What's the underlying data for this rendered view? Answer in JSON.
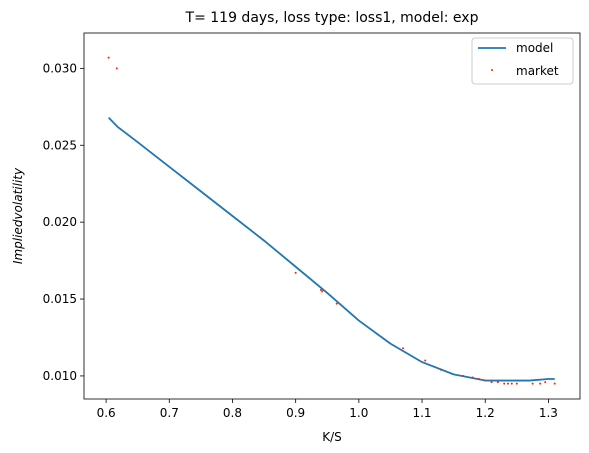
{
  "chart_data": {
    "type": "line",
    "title": "T= 119 days, loss type: loss1, model: exp",
    "xlabel": "K/S",
    "ylabel": "Impliedvolatility",
    "xlim": [
      0.565,
      1.35
    ],
    "ylim": [
      0.0085,
      0.0323
    ],
    "xticks": [
      0.6,
      0.7,
      0.8,
      0.9,
      1.0,
      1.1,
      1.2,
      1.3
    ],
    "xtick_labels": [
      "0.6",
      "0.7",
      "0.8",
      "0.9",
      "1.0",
      "1.1",
      "1.2",
      "1.3"
    ],
    "yticks": [
      0.01,
      0.015,
      0.02,
      0.025,
      0.03
    ],
    "ytick_labels": [
      "0.010",
      "0.015",
      "0.020",
      "0.025",
      "0.030"
    ],
    "grid": false,
    "legend_position": "top-right",
    "series": [
      {
        "name": "model",
        "kind": "line",
        "color": "#1f77b4",
        "x": [
          0.604,
          0.618,
          0.65,
          0.7,
          0.75,
          0.8,
          0.85,
          0.9,
          0.95,
          1.0,
          1.05,
          1.1,
          1.15,
          1.2,
          1.24,
          1.27,
          1.3,
          1.31
        ],
        "y": [
          0.0268,
          0.0262,
          0.0252,
          0.0236,
          0.022,
          0.0204,
          0.0188,
          0.0171,
          0.0154,
          0.0136,
          0.0121,
          0.0109,
          0.0101,
          0.0097,
          0.0097,
          0.0097,
          0.0098,
          0.0098
        ]
      },
      {
        "name": "market",
        "kind": "scatter",
        "color": "#ff2200",
        "x": [
          0.604,
          0.617,
          0.9,
          0.94,
          0.942,
          0.965,
          1.07,
          1.105,
          1.13,
          1.165,
          1.18,
          1.19,
          1.2,
          1.21,
          1.22,
          1.23,
          1.236,
          1.242,
          1.25,
          1.275,
          1.287,
          1.295,
          1.31
        ],
        "y": [
          0.0307,
          0.03,
          0.0167,
          0.0156,
          0.0155,
          0.0147,
          0.0118,
          0.011,
          0.0104,
          0.01,
          0.0099,
          0.0098,
          0.0097,
          0.0096,
          0.0096,
          0.0095,
          0.0095,
          0.0095,
          0.0095,
          0.0095,
          0.0095,
          0.0096,
          0.0095
        ]
      }
    ]
  }
}
